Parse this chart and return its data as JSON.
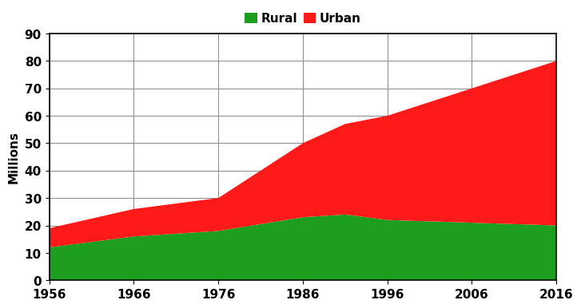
{
  "years": [
    1956,
    1966,
    1976,
    1986,
    1991,
    1996,
    2006,
    2016
  ],
  "rural": [
    12,
    16,
    18,
    23,
    24,
    22,
    21,
    20
  ],
  "urban_only": [
    7,
    10,
    12,
    27,
    33,
    38,
    49,
    60
  ],
  "rural_color": "#1e9e1e",
  "urban_color": "#ff1a1a",
  "ylabel": "Millions",
  "ylim": [
    0,
    90
  ],
  "yticks": [
    0,
    10,
    20,
    30,
    40,
    50,
    60,
    70,
    80,
    90
  ],
  "xticks": [
    1956,
    1966,
    1976,
    1986,
    1996,
    2006,
    2016
  ],
  "legend_labels": [
    "Rural",
    "Urban"
  ],
  "background_color": "#ffffff",
  "grid_color": "#888888"
}
